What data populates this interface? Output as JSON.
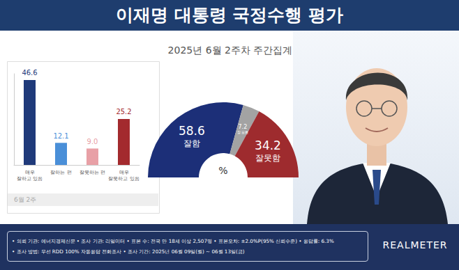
{
  "header": {
    "title": "이재명 대통령 국정수행 평가",
    "subtitle": "2025년 6월 2주차 주간집계"
  },
  "chart_data": [
    {
      "type": "bar",
      "categories": [
        "매우\n잘하고 있음",
        "잘하는 편",
        "잘못하는 편",
        "매우\n잘못하고 있음"
      ],
      "values": [
        46.6,
        12.1,
        9.0,
        25.2
      ],
      "value_labels": [
        "46.6",
        "12.1",
        "9.0",
        "25.2"
      ],
      "colors": [
        "#1f3a7a",
        "#4a8fd8",
        "#e8a0a6",
        "#a32a2e"
      ],
      "xlabel": "6월 2주",
      "ylim": [
        0,
        50
      ],
      "data_labels": true,
      "tick_labels": "x"
    },
    {
      "type": "pie",
      "categories": [
        "잘함",
        "잘 모름",
        "잘못함"
      ],
      "values": [
        58.6,
        7.2,
        34.2
      ],
      "value_labels": [
        "58.6",
        "7.2",
        "34.2"
      ],
      "colors": [
        "#1c2f78",
        "#a3a3a3",
        "#9e2b2e"
      ],
      "annotation": "%",
      "data_labels": true
    }
  ],
  "footer": {
    "lines": [
      "• 의뢰 기관: 에너지경제신문 • 조사 기관: 리얼미터 • 표본 수: 전국 만 18세 이상 2,507명 • 표본오차: ±2.0%P(95% 신뢰수준) • 응답률: 6.3%",
      "• 조사 방법: 무선 RDD 100% 자동응답 전화조사 • 조사 기간: 2025년 06월 09일(월) ~ 06월 13일(금)"
    ],
    "logo": "REALMETER"
  }
}
